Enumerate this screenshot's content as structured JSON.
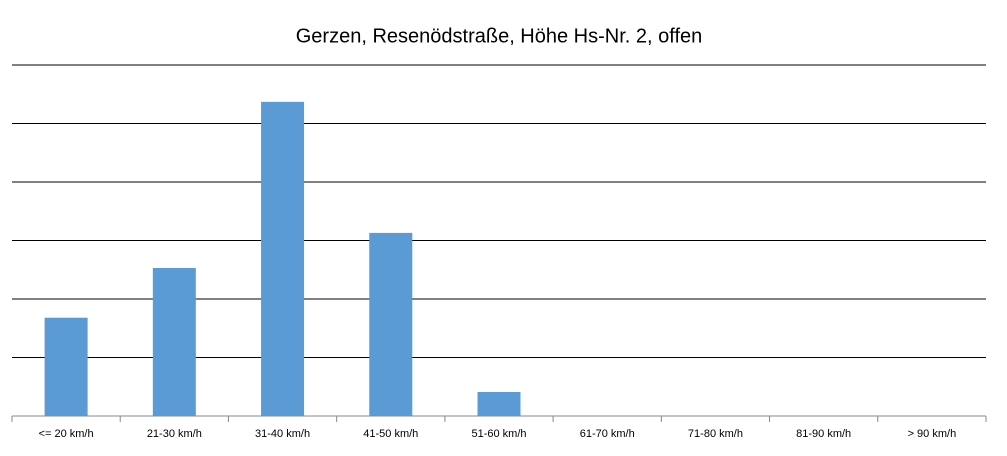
{
  "chart_data": {
    "type": "bar",
    "title": "Gerzen, Resenödstraße, Höhe Hs-Nr. 2, offen",
    "categories": [
      "<= 20 km/h",
      "21-30 km/h",
      "31-40 km/h",
      "41-50 km/h",
      "51-60 km/h",
      "61-70 km/h",
      "71-80 km/h",
      "81-90 km/h",
      "> 90 km/h"
    ],
    "values": [
      1.68,
      2.53,
      5.37,
      3.13,
      0.41,
      0,
      0,
      0,
      0
    ],
    "color": "#5b9bd5",
    "ylim": [
      0,
      6
    ],
    "grid_values": [
      1,
      2,
      3,
      4,
      5,
      6
    ]
  }
}
